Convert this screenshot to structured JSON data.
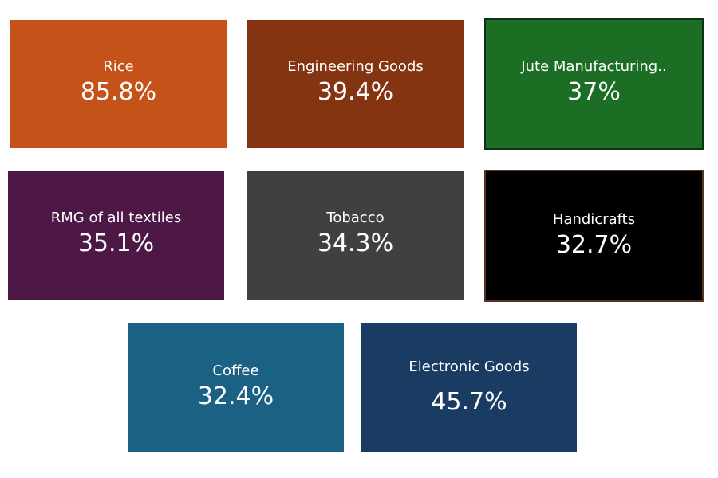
{
  "tiles": [
    {
      "label": "Rice",
      "value": "85.8%",
      "color": "#c55218"
    },
    {
      "label": "Engineering Goods",
      "value": "39.4%",
      "color": "#843411"
    },
    {
      "label": "Jute Manufacturing..",
      "value": "37%",
      "color": "#1d6e25"
    },
    {
      "label": "RMG of all textiles",
      "value": "35.1%",
      "color": "#4e1846"
    },
    {
      "label": "Tobacco",
      "value": "34.3%",
      "color": "#404040"
    },
    {
      "label": "Handicrafts",
      "value": "32.7%",
      "color": "#000000"
    },
    {
      "label": "Coffee",
      "value": "32.4%",
      "color": "#1a6184"
    },
    {
      "label": "Electronic Goods",
      "value": "45.7%",
      "color": "#1a3b62"
    }
  ]
}
